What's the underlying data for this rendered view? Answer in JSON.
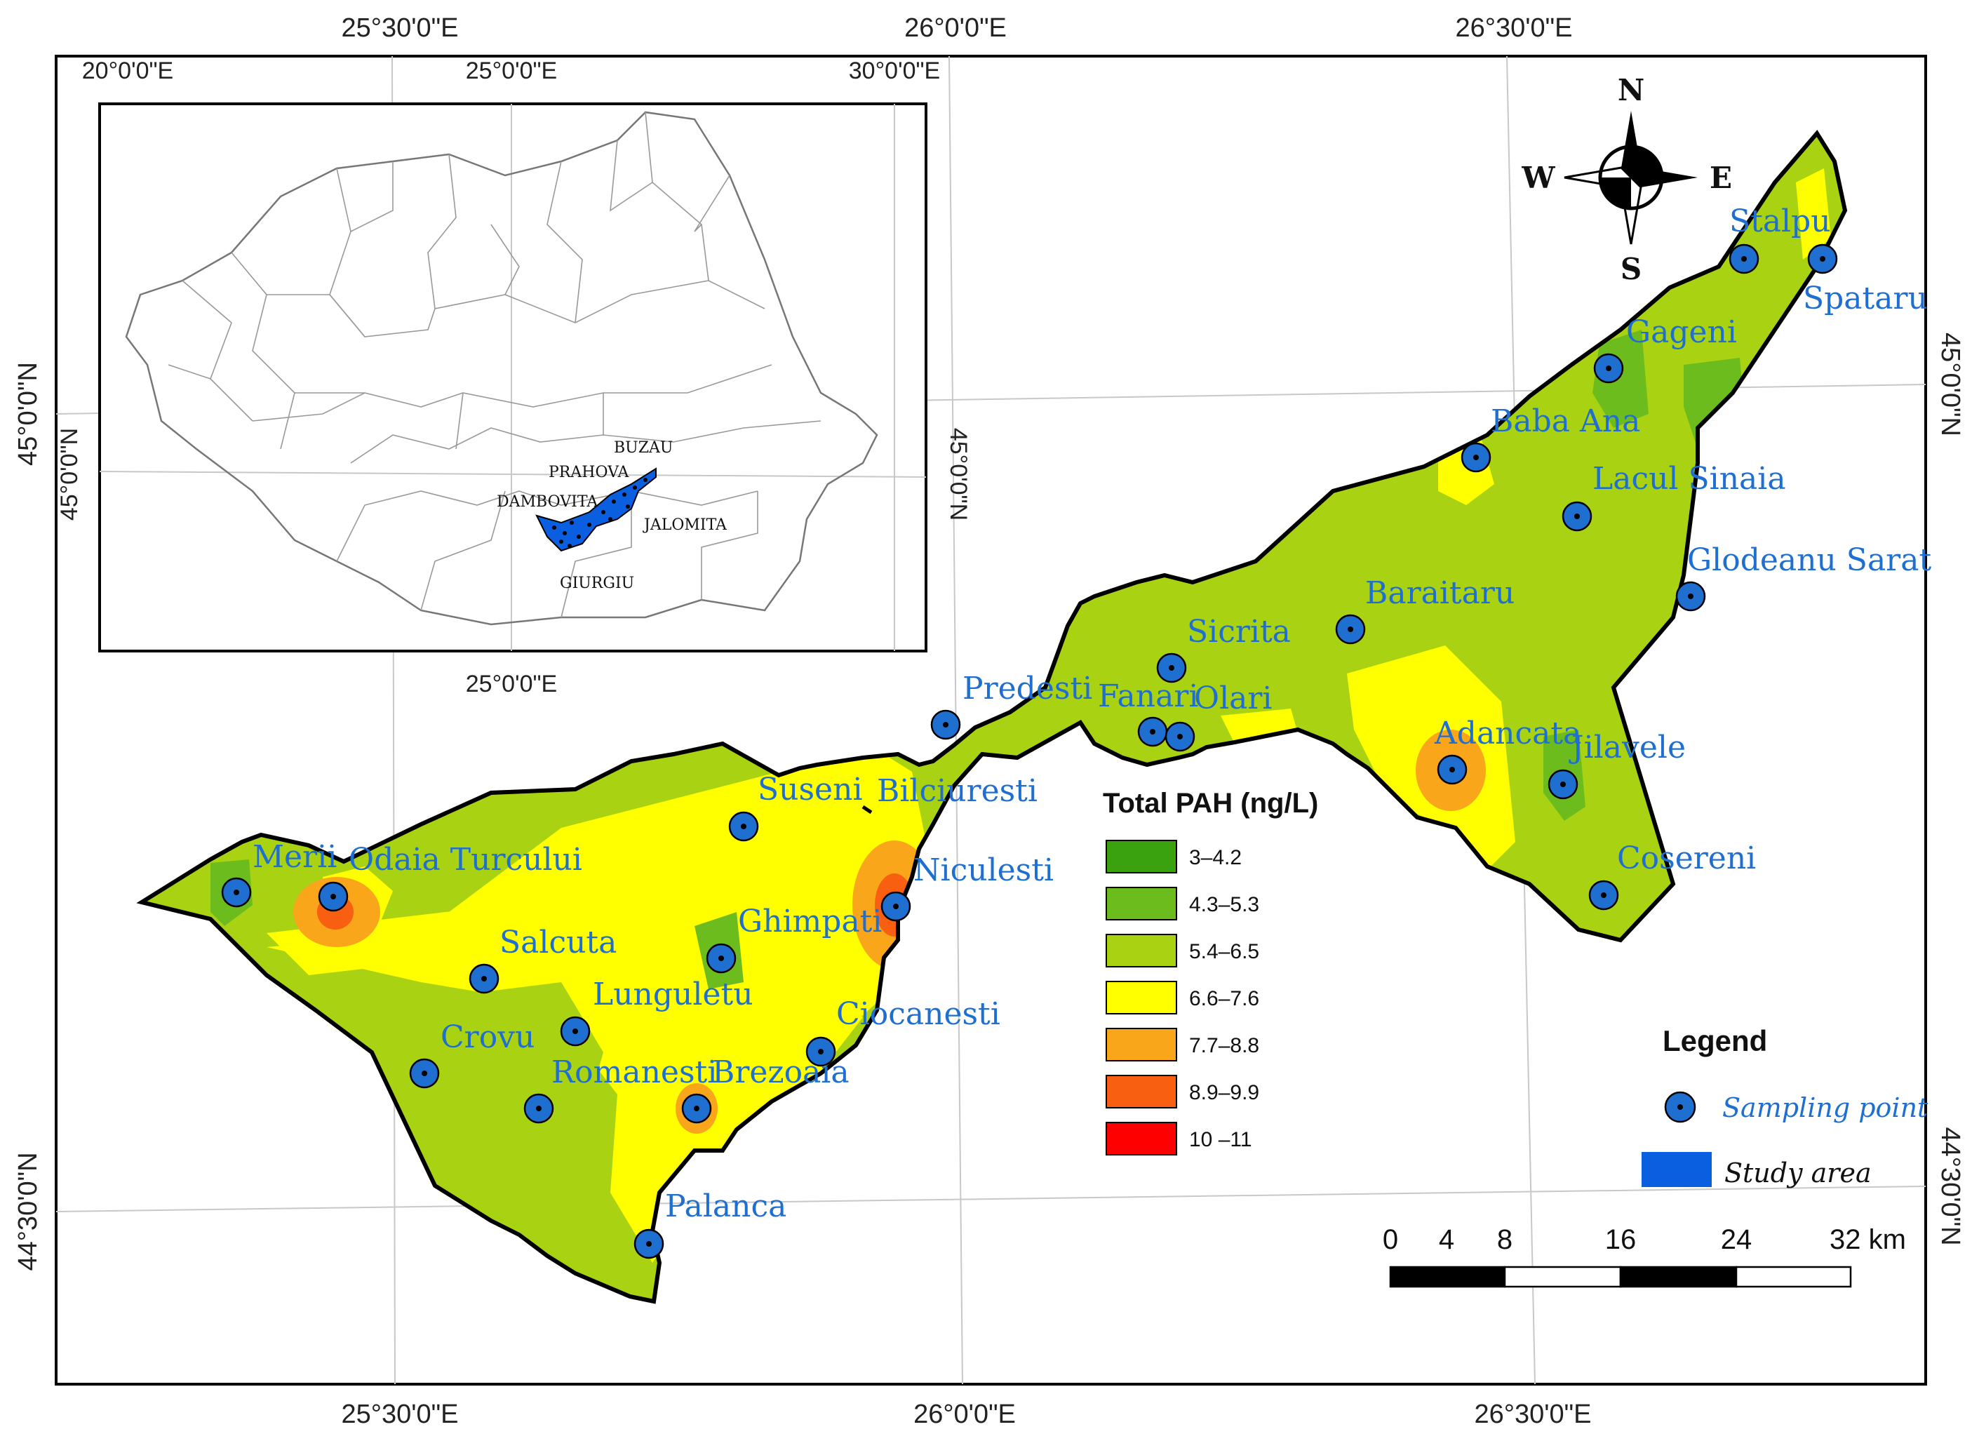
{
  "main_map": {
    "top_coords": [
      "25°30'0\"E",
      "26°0'0\"E",
      "26°30'0\"E"
    ],
    "bottom_coords": [
      "25°30'0\"E",
      "26°0'0\"E",
      "26°30'0\"E"
    ],
    "left_coords": [
      "45°0'0\"N",
      "44°30'0\"N"
    ],
    "right_coords": [
      "45°0'0\"N",
      "44°30'0\"N"
    ]
  },
  "inset_map": {
    "top_coords": [
      "20°0'0\"E",
      "25°0'0\"E",
      "30°0'0\"E"
    ],
    "bottom_coord": "25°0'0\"E",
    "left_coord": "45°0'0\"N",
    "right_coord": "45°0'0\"N",
    "provinces": [
      "BUZAU",
      "PRAHOVA",
      "DAMBOVITA",
      "JALOMITA",
      "GIURGIU"
    ]
  },
  "sampling_points": [
    {
      "name": "Stalpu"
    },
    {
      "name": "Spataru"
    },
    {
      "name": "Gageni"
    },
    {
      "name": "Baba Ana"
    },
    {
      "name": "Lacul Sinaia"
    },
    {
      "name": "Glodeanu Sarat"
    },
    {
      "name": "Baraitaru"
    },
    {
      "name": "Sicrita"
    },
    {
      "name": "Predesti"
    },
    {
      "name": "Fanari"
    },
    {
      "name": "Olari"
    },
    {
      "name": "Adancata"
    },
    {
      "name": "Jilavele"
    },
    {
      "name": "Cosereni"
    },
    {
      "name": "Suseni"
    },
    {
      "name": "Bilciuresti"
    },
    {
      "name": "Merii"
    },
    {
      "name": "Odaia Turcului"
    },
    {
      "name": "Niculesti"
    },
    {
      "name": "Ghimpati"
    },
    {
      "name": "Salcuta"
    },
    {
      "name": "Lunguletu"
    },
    {
      "name": "Ciocanesti"
    },
    {
      "name": "Crovu"
    },
    {
      "name": "Romanesti"
    },
    {
      "name": "Brezoaia"
    },
    {
      "name": "Palanca"
    }
  ],
  "pah_legend": {
    "title": "Total PAH (ng/L)",
    "classes": [
      {
        "label": "3–4.2",
        "color": "#3aa10f"
      },
      {
        "label": "4.3–5.3",
        "color": "#6cbc1e"
      },
      {
        "label": "5.4–6.5",
        "color": "#a9d312"
      },
      {
        "label": "6.6–7.6",
        "color": "#ffff00"
      },
      {
        "label": "7.7–8.8",
        "color": "#f9a61a"
      },
      {
        "label": "8.9–9.9",
        "color": "#f85f10"
      },
      {
        "label": "10 –11",
        "color": "#ff0000"
      }
    ]
  },
  "legend": {
    "title": "Legend",
    "sampling_point": "Sampling point",
    "study_area": "Study area",
    "point_color": "#1f6fd1",
    "area_color": "#0a5ee0"
  },
  "scale_bar": {
    "ticks": [
      "0",
      "4",
      "8",
      "16",
      "24",
      "32 km"
    ]
  },
  "compass": {
    "n": "N",
    "s": "S",
    "e": "E",
    "w": "W"
  }
}
